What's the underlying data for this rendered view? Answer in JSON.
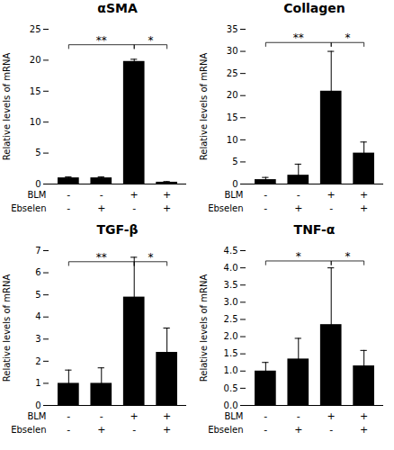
{
  "chart_data": [
    {
      "type": "bar",
      "title": "αSMA",
      "ylabel": "Relative levels of mRNA",
      "categories": [
        null,
        null,
        null,
        null
      ],
      "factors": [
        {
          "name": "BLM",
          "labels": [
            "-",
            "-",
            "+",
            "+"
          ]
        },
        {
          "name": "Ebselen",
          "labels": [
            "-",
            "+",
            "-",
            "+"
          ]
        }
      ],
      "values": [
        1.0,
        1.0,
        19.8,
        0.3
      ],
      "errors": [
        0.15,
        0.15,
        0.35,
        0.1
      ],
      "color": "#000000",
      "ylim": [
        0,
        25
      ],
      "yticks": [
        0,
        5,
        10,
        15,
        20,
        25
      ],
      "annotations": [
        {
          "x1": 0,
          "x2": 2,
          "y": 22.5,
          "label": "**"
        },
        {
          "x1": 2,
          "x2": 3,
          "y": 22.5,
          "label": "*"
        }
      ],
      "grid": false,
      "tick_labels": "y"
    },
    {
      "type": "bar",
      "title": "Collagen",
      "ylabel": "Relative levels of mRNA",
      "categories": [
        null,
        null,
        null,
        null
      ],
      "factors": [
        {
          "name": "BLM",
          "labels": [
            "-",
            "-",
            "+",
            "+"
          ]
        },
        {
          "name": "Ebselen",
          "labels": [
            "-",
            "+",
            "-",
            "+"
          ]
        }
      ],
      "values": [
        1.0,
        2.0,
        21.0,
        7.0
      ],
      "errors": [
        0.5,
        2.5,
        9.0,
        2.5
      ],
      "color": "#000000",
      "ylim": [
        0,
        35
      ],
      "yticks": [
        0,
        5,
        10,
        15,
        20,
        25,
        30,
        35
      ],
      "annotations": [
        {
          "x1": 0,
          "x2": 2,
          "y": 32.0,
          "label": "**"
        },
        {
          "x1": 2,
          "x2": 3,
          "y": 32.0,
          "label": "*"
        }
      ],
      "grid": false,
      "tick_labels": "y"
    },
    {
      "type": "bar",
      "title": "TGF-β",
      "ylabel": "Relative levels of mRNA",
      "categories": [
        null,
        null,
        null,
        null
      ],
      "factors": [
        {
          "name": "BLM",
          "labels": [
            "-",
            "-",
            "+",
            "+"
          ]
        },
        {
          "name": "Ebselen",
          "labels": [
            "-",
            "+",
            "-",
            "+"
          ]
        }
      ],
      "values": [
        1.0,
        1.0,
        4.9,
        2.4
      ],
      "errors": [
        0.6,
        0.7,
        1.8,
        1.1
      ],
      "color": "#000000",
      "ylim": [
        0,
        7
      ],
      "yticks": [
        0,
        1,
        2,
        3,
        4,
        5,
        6,
        7
      ],
      "annotations": [
        {
          "x1": 0,
          "x2": 2,
          "y": 6.5,
          "label": "**"
        },
        {
          "x1": 2,
          "x2": 3,
          "y": 6.5,
          "label": "*"
        }
      ],
      "grid": false,
      "tick_labels": "y"
    },
    {
      "type": "bar",
      "title": "TNF-α",
      "ylabel": "Relative levels of mRNA",
      "categories": [
        null,
        null,
        null,
        null
      ],
      "factors": [
        {
          "name": "BLM",
          "labels": [
            "-",
            "-",
            "+",
            "+"
          ]
        },
        {
          "name": "Ebselen",
          "labels": [
            "-",
            "+",
            "-",
            "+"
          ]
        }
      ],
      "values": [
        1.0,
        1.35,
        2.35,
        1.15
      ],
      "errors": [
        0.25,
        0.6,
        1.65,
        0.45
      ],
      "color": "#000000",
      "ylim": [
        0,
        4.5
      ],
      "yticks": [
        {
          "value": 0,
          "label": "0.0"
        },
        0.5,
        {
          "value": 1.0,
          "label": "1.0"
        },
        1.5,
        {
          "value": 2.0,
          "label": "2.0"
        },
        2.5,
        {
          "value": 3.0,
          "label": "3.0"
        },
        3.5,
        {
          "value": 4.0,
          "label": "4.0"
        },
        4.5
      ],
      "annotations": [
        {
          "x1": 0,
          "x2": 2,
          "y": 4.2,
          "label": "*"
        },
        {
          "x1": 2,
          "x2": 3,
          "y": 4.2,
          "label": "*"
        }
      ],
      "grid": false,
      "tick_labels": "y"
    }
  ]
}
